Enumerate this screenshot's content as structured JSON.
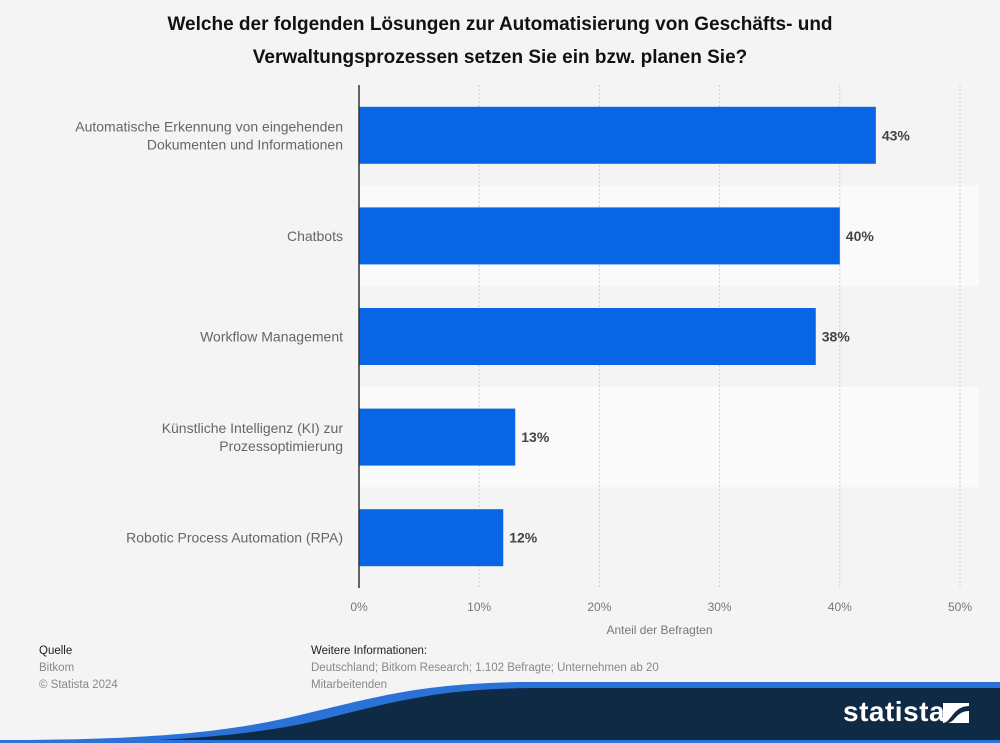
{
  "title_line1": "Welche der folgenden Lösungen zur Automatisierung von Geschäfts- und",
  "title_line2": "Verwaltungsprozessen setzen Sie ein bzw. planen Sie?",
  "chart_data": {
    "type": "bar",
    "orientation": "horizontal",
    "title": "Welche der folgenden Lösungen zur Automatisierung von Geschäfts- und Verwaltungsprozessen setzen Sie ein bzw. planen Sie?",
    "categories": [
      [
        "Automatische Erkennung von eingehenden",
        "Dokumenten und Informationen"
      ],
      [
        "Chatbots"
      ],
      [
        "Workflow Management"
      ],
      [
        "Künstliche Intelligenz (KI) zur",
        "Prozessoptimierung"
      ],
      [
        "Robotic Process Automation (RPA)"
      ]
    ],
    "values": [
      43,
      40,
      38,
      13,
      12
    ],
    "value_labels": [
      "43%",
      "40%",
      "38%",
      "13%",
      "12%"
    ],
    "xlabel": "Anteil der Befragten",
    "ylabel": "",
    "xlim": [
      0,
      50
    ],
    "ticks": [
      0,
      10,
      20,
      30,
      40,
      50
    ],
    "tick_labels": [
      "0%",
      "10%",
      "20%",
      "30%",
      "40%",
      "50%"
    ],
    "grid": true,
    "legend": "none",
    "bar_color": "#0866e4"
  },
  "footer": {
    "source_heading": "Quelle",
    "source_name": "Bitkom",
    "copyright": "© Statista 2024",
    "info_heading": "Weitere Informationen:",
    "info_line1": "Deutschland; Bitkom Research; 1.102 Befragte; Unternehmen ab 20",
    "info_line2": "Mitarbeitenden"
  },
  "brand": {
    "name": "statista",
    "dark_color": "#0f2a44",
    "accent_color": "#2a72d8"
  }
}
